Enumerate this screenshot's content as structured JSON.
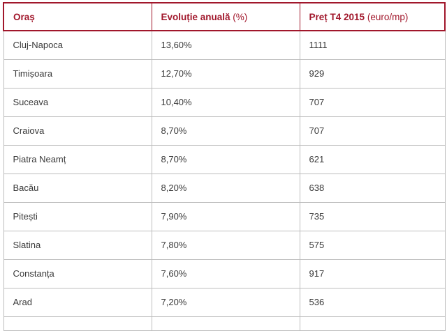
{
  "header": {
    "col_city": {
      "label": "Oraș"
    },
    "col_growth": {
      "label": "Evoluție anuală",
      "unit": "(%)"
    },
    "col_price": {
      "label": "Preț T4 2015",
      "unit": "(euro/mp)"
    }
  },
  "rows": [
    {
      "city": "Cluj-Napoca",
      "growth": "13,60%",
      "price": "1111"
    },
    {
      "city": "Timișoara",
      "growth": "12,70%",
      "price": "929"
    },
    {
      "city": "Suceava",
      "growth": "10,40%",
      "price": "707"
    },
    {
      "city": "Craiova",
      "growth": "8,70%",
      "price": "707"
    },
    {
      "city": "Piatra Neamț",
      "growth": "8,70%",
      "price": "621"
    },
    {
      "city": "Bacău",
      "growth": "8,20%",
      "price": "638"
    },
    {
      "city": "Pitești",
      "growth": "7,90%",
      "price": "735"
    },
    {
      "city": "Slatina",
      "growth": "7,80%",
      "price": "575"
    },
    {
      "city": "Constanța",
      "growth": "7,60%",
      "price": "917"
    },
    {
      "city": "Arad",
      "growth": "7,20%",
      "price": "536"
    }
  ],
  "colors": {
    "accent": "#a1172b",
    "grid": "#bdbdbd",
    "text": "#3a3a3a"
  }
}
